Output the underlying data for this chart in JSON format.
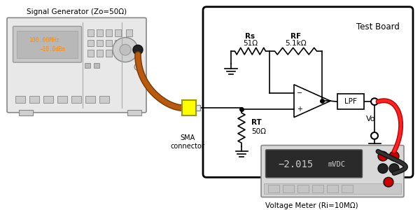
{
  "bg_color": "#ffffff",
  "sg_label": "Signal Generator (Zo=50Ω)",
  "sg_display_line1": "100.00MHz",
  "sg_display_line2": "−10.0dBm",
  "sg_display_color": "#ff8c00",
  "sma_label": "SMA\nconnector",
  "tb_label": "Test Board",
  "rs_label": "Rs",
  "rs_value": "51Ω",
  "rf_label": "RF",
  "rf_value": "5.1kΩ",
  "rt_label": "RT",
  "rt_value": "50Ω",
  "lpf_label": "LPF",
  "vo_label": "Vo",
  "vm_label": "Voltage Meter (Ri=10MΩ)",
  "vm_display": "−2.015",
  "vm_units": "mVDC"
}
